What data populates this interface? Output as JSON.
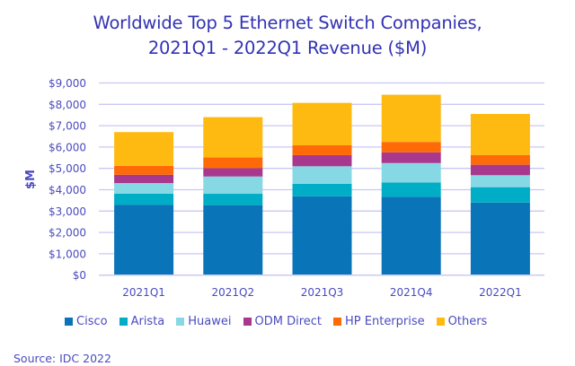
{
  "chart_data": {
    "type": "bar",
    "stacked": true,
    "title": "Worldwide Top 5 Ethernet Switch Companies, 2021Q1 - 2022Q1 Revenue ($M)",
    "title_lines": [
      "Worldwide Top 5 Ethernet Switch Companies,",
      "2021Q1 - 2022Q1 Revenue ($M)"
    ],
    "xlabel": "",
    "ylabel": "$M",
    "ylim": [
      0,
      9000
    ],
    "yticks": [
      0,
      1000,
      2000,
      3000,
      4000,
      5000,
      6000,
      7000,
      8000,
      9000
    ],
    "ytick_labels": [
      "$0",
      "$1,000",
      "$2,000",
      "$3,000",
      "$4,000",
      "$5,000",
      "$6,000",
      "$7,000",
      "$8,000",
      "$9,000"
    ],
    "grid": true,
    "legend_position": "bottom",
    "categories": [
      "2021Q1",
      "2021Q2",
      "2021Q3",
      "2021Q4",
      "2022Q1"
    ],
    "series": [
      {
        "name": "Cisco",
        "color": "#0A74B8",
        "values": [
          3300,
          3280,
          3690,
          3670,
          3400
        ]
      },
      {
        "name": "Arista",
        "color": "#00ADC6",
        "values": [
          520,
          530,
          590,
          670,
          720
        ]
      },
      {
        "name": "Huawei",
        "color": "#86D8E4",
        "values": [
          490,
          810,
          820,
          910,
          560
        ]
      },
      {
        "name": "ODM Direct",
        "color": "#A8378E",
        "values": [
          390,
          390,
          520,
          500,
          490
        ]
      },
      {
        "name": "HP Enterprise",
        "color": "#FF6A08",
        "values": [
          420,
          500,
          460,
          490,
          450
        ]
      },
      {
        "name": "Others",
        "color": "#FFBA12",
        "values": [
          1580,
          1890,
          1990,
          2210,
          1930
        ]
      }
    ],
    "source": "Source: IDC 2022"
  }
}
